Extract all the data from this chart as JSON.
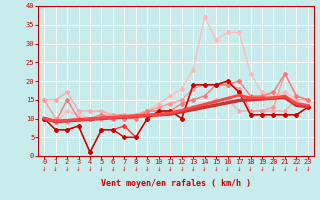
{
  "xlabel": "Vent moyen/en rafales ( km/h )",
  "xlim": [
    -0.5,
    23.5
  ],
  "ylim": [
    0,
    40
  ],
  "yticks": [
    0,
    5,
    10,
    15,
    20,
    25,
    30,
    35,
    40
  ],
  "xticks": [
    0,
    1,
    2,
    3,
    4,
    5,
    6,
    7,
    8,
    9,
    10,
    11,
    12,
    13,
    14,
    15,
    16,
    17,
    18,
    19,
    20,
    21,
    22,
    23
  ],
  "bg_color": "#c8ecec",
  "grid_color": "#ffffff",
  "series": [
    {
      "note": "light pink - high peak series (rafales max)",
      "x": [
        0,
        1,
        2,
        3,
        4,
        5,
        6,
        7,
        8,
        9,
        10,
        11,
        12,
        13,
        14,
        15,
        16,
        17,
        18,
        19,
        20,
        21,
        22,
        23
      ],
      "y": [
        10,
        9,
        12,
        11,
        10,
        11,
        11,
        11,
        11,
        12,
        14,
        16,
        18,
        23,
        37,
        31,
        33,
        33,
        22,
        17,
        16,
        17,
        15,
        15
      ],
      "color": "#ffbbbb",
      "lw": 1.0,
      "marker": "D",
      "ms": 2.0,
      "zorder": 2
    },
    {
      "note": "medium pink upper band",
      "x": [
        0,
        1,
        2,
        3,
        4,
        5,
        6,
        7,
        8,
        9,
        10,
        11,
        12,
        13,
        14,
        15,
        16,
        17,
        18,
        19,
        20,
        21,
        22,
        23
      ],
      "y": [
        15,
        15,
        17,
        12,
        12,
        12,
        11,
        11,
        11,
        12,
        12,
        12,
        12,
        13,
        14,
        15,
        15,
        12,
        12,
        12,
        12,
        12,
        15,
        15
      ],
      "color": "#ffaaaa",
      "lw": 1.0,
      "marker": "D",
      "ms": 2.0,
      "zorder": 3
    },
    {
      "note": "pink - mid series",
      "x": [
        0,
        1,
        2,
        3,
        4,
        5,
        6,
        7,
        8,
        9,
        10,
        11,
        12,
        13,
        14,
        15,
        16,
        17,
        18,
        19,
        20,
        21,
        22,
        23
      ],
      "y": [
        15,
        10,
        9,
        10,
        10,
        10,
        11,
        11,
        11,
        12,
        13,
        14,
        15,
        18,
        19,
        19,
        19,
        18,
        12,
        12,
        13,
        22,
        16,
        15
      ],
      "color": "#ff9999",
      "lw": 1.0,
      "marker": "D",
      "ms": 2.0,
      "zorder": 3
    },
    {
      "note": "medium pink lower - scattered",
      "x": [
        0,
        1,
        2,
        3,
        4,
        5,
        6,
        7,
        8,
        9,
        10,
        11,
        12,
        13,
        14,
        15,
        16,
        17,
        18,
        19,
        20,
        21,
        22,
        23
      ],
      "y": [
        10,
        9,
        15,
        10,
        10,
        11,
        10,
        10,
        10,
        12,
        12,
        12,
        14,
        15,
        16,
        19,
        19,
        20,
        16,
        16,
        17,
        22,
        16,
        15
      ],
      "color": "#ff7777",
      "lw": 1.0,
      "marker": "D",
      "ms": 2.0,
      "zorder": 3
    },
    {
      "note": "red scattered - vent moyen",
      "x": [
        0,
        1,
        2,
        3,
        4,
        5,
        6,
        7,
        8,
        9,
        10,
        11,
        12,
        13,
        14,
        15,
        16,
        17,
        18,
        19,
        20,
        21,
        22,
        23
      ],
      "y": [
        10,
        7,
        7,
        8,
        1,
        7,
        7,
        8,
        5,
        10,
        12,
        12,
        10,
        19,
        19,
        19,
        20,
        17,
        11,
        11,
        11,
        11,
        11,
        13
      ],
      "color": "#ff3333",
      "lw": 1.0,
      "marker": "D",
      "ms": 2.0,
      "zorder": 4
    },
    {
      "note": "dark red scattered lower",
      "x": [
        0,
        1,
        2,
        3,
        4,
        5,
        6,
        7,
        8,
        9,
        10,
        11,
        12,
        13,
        14,
        15,
        16,
        17,
        18,
        19,
        20,
        21,
        22,
        23
      ],
      "y": [
        10,
        7,
        7,
        8,
        1,
        7,
        7,
        5,
        5,
        10,
        12,
        12,
        10,
        19,
        19,
        19,
        20,
        17,
        11,
        11,
        11,
        11,
        11,
        13
      ],
      "color": "#cc0000",
      "lw": 1.0,
      "marker": "D",
      "ms": 2.0,
      "zorder": 5
    },
    {
      "note": "thick dark trend line upper",
      "x": [
        0,
        1,
        2,
        3,
        4,
        5,
        6,
        7,
        8,
        9,
        10,
        11,
        12,
        13,
        14,
        15,
        16,
        17,
        18,
        19,
        20,
        21,
        22,
        23
      ],
      "y": [
        10,
        9.2,
        9.4,
        9.6,
        9.8,
        10.0,
        10.2,
        10.4,
        10.6,
        10.8,
        11.0,
        11.2,
        11.8,
        12.4,
        13.0,
        13.6,
        14.2,
        14.8,
        15.0,
        15.2,
        15.4,
        15.6,
        13.5,
        13.2
      ],
      "color": "#cc3333",
      "lw": 2.5,
      "marker": null,
      "ms": 0,
      "zorder": 6
    },
    {
      "note": "thick red trend line lower",
      "x": [
        0,
        1,
        2,
        3,
        4,
        5,
        6,
        7,
        8,
        9,
        10,
        11,
        12,
        13,
        14,
        15,
        16,
        17,
        18,
        19,
        20,
        21,
        22,
        23
      ],
      "y": [
        10,
        9.3,
        9.5,
        9.7,
        9.9,
        10.1,
        10.3,
        10.5,
        10.7,
        10.9,
        11.1,
        11.5,
        12.2,
        13.0,
        13.8,
        14.6,
        15.4,
        16.2,
        15.5,
        15.5,
        15.5,
        16.0,
        14.0,
        13.5
      ],
      "color": "#ff4444",
      "lw": 2.0,
      "marker": null,
      "ms": 0,
      "zorder": 6
    }
  ],
  "arrow_color": "#cc0000",
  "axis_color": "#cc0000",
  "tick_color": "#cc0000",
  "label_color": "#cc0000",
  "font_family": "monospace"
}
